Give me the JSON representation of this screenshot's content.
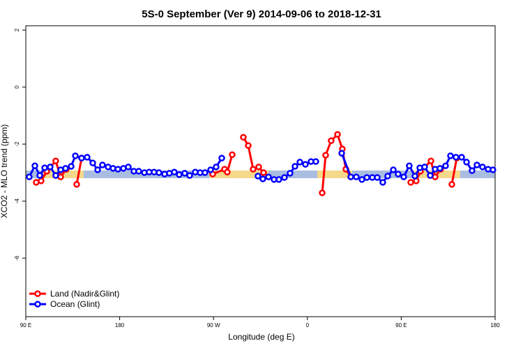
{
  "chart_data": {
    "type": "line",
    "title": "5S-0 September (Ver 9)   2014-09-06 to 2018-12-31",
    "x_label": "Longitude (deg E)",
    "y_label": "XCO2 - MLO trend (ppm)",
    "xlim": [
      90,
      540
    ],
    "xticks": [
      {
        "value": 90,
        "label": "90 E"
      },
      180,
      {
        "value": 270,
        "label": "90 W"
      },
      {
        "value": 360,
        "label": "0"
      },
      {
        "value": 450,
        "label": "90 E"
      },
      {
        "value": 540,
        "label": "180"
      }
    ],
    "ylim": [
      -8.05,
      2.15
    ],
    "yticks": [
      2,
      0,
      -2,
      -4,
      -6
    ],
    "legend": "bottom-left",
    "series": [
      {
        "name": "Land (Nadir&Glint)",
        "color": "#ff0000",
        "x": [
          100.0,
          104.7,
          110.1,
          118.7,
          123.4,
          128.8,
          null,
          138.8,
          143.5,
          null,
          269.2,
          280.6,
          283.2,
          287.9,
          null,
          298.6,
          303.3,
          308.0,
          313.3,
          318.0,
          null,
          374.2,
          377.5,
          382.8,
          388.9,
          393.5,
          396.9,
          401.6,
          null,
          459.1,
          464.4,
          468.4,
          478.5,
          482.5,
          487.8,
          null,
          498.5,
          503.2
        ],
        "values": [
          -3.34,
          -3.29,
          -2.95,
          -2.59,
          -3.15,
          -2.88,
          null,
          -3.41,
          -2.49,
          null,
          -3.05,
          -2.88,
          -2.98,
          -2.37,
          null,
          -1.76,
          -2.05,
          -2.88,
          -2.8,
          -3.0,
          null,
          -3.71,
          -2.39,
          -1.88,
          -1.66,
          -2.17,
          -2.88,
          -3.15,
          null,
          -3.34,
          -3.29,
          -2.95,
          -2.59,
          -3.15,
          -2.88,
          null,
          -3.41,
          -2.49
        ]
      },
      {
        "name": "Ocean (Glint)",
        "color": "#0000ff",
        "x": [
          93.3,
          98.7,
          103.4,
          108.1,
          113.4,
          118.7,
          123.4,
          128.1,
          133.5,
          137.5,
          143.5,
          148.8,
          154.2,
          158.9,
          163.5,
          168.9,
          173.6,
          178.3,
          183.6,
          188.3,
          193.6,
          198.3,
          203.7,
          208.3,
          213.0,
          217.7,
          223.1,
          227.7,
          232.4,
          237.1,
          242.4,
          247.1,
          252.5,
          257.2,
          261.8,
          267.2,
          272.5,
          277.9,
          null,
          312.6,
          317.3,
          322.7,
          328.0,
          332.7,
          338.0,
          343.4,
          348.1,
          352.8,
          358.1,
          363.5,
          368.1,
          null,
          392.9,
          401.6,
          406.9,
          412.3,
          417.0,
          422.3,
          427.0,
          432.3,
          437.0,
          442.4,
          447.0,
          452.4,
          457.7,
          463.1,
          467.8,
          472.4,
          477.8,
          482.5,
          487.1,
          492.5,
          497.2,
          502.5,
          507.9,
          512.6,
          517.9,
          522.6,
          527.9,
          533.3,
          537.9
        ],
        "values": [
          -3.15,
          -2.76,
          -3.1,
          -2.83,
          -2.8,
          -3.1,
          -2.9,
          -2.85,
          -2.78,
          -2.41,
          -2.49,
          -2.46,
          -2.66,
          -2.9,
          -2.73,
          -2.8,
          -2.85,
          -2.88,
          -2.85,
          -2.8,
          -2.95,
          -2.95,
          -3.0,
          -2.98,
          -2.98,
          -3.0,
          -3.05,
          -3.02,
          -2.98,
          -3.07,
          -3.02,
          -3.1,
          -2.98,
          -3.0,
          -3.0,
          -2.9,
          -2.8,
          -2.49,
          null,
          -3.12,
          -3.22,
          -3.15,
          -3.24,
          -3.24,
          -3.17,
          -3.02,
          -2.78,
          -2.63,
          -2.71,
          -2.61,
          -2.61,
          null,
          -2.32,
          -3.15,
          -3.15,
          -3.24,
          -3.17,
          -3.17,
          -3.17,
          -3.34,
          -3.12,
          -2.9,
          -3.05,
          -3.15,
          -2.76,
          -3.12,
          -2.83,
          -2.8,
          -3.1,
          -2.88,
          -2.85,
          -2.76,
          -2.41,
          -2.46,
          -2.46,
          -2.63,
          -2.93,
          -2.73,
          -2.8,
          -2.88,
          -2.9
        ]
      }
    ]
  }
}
